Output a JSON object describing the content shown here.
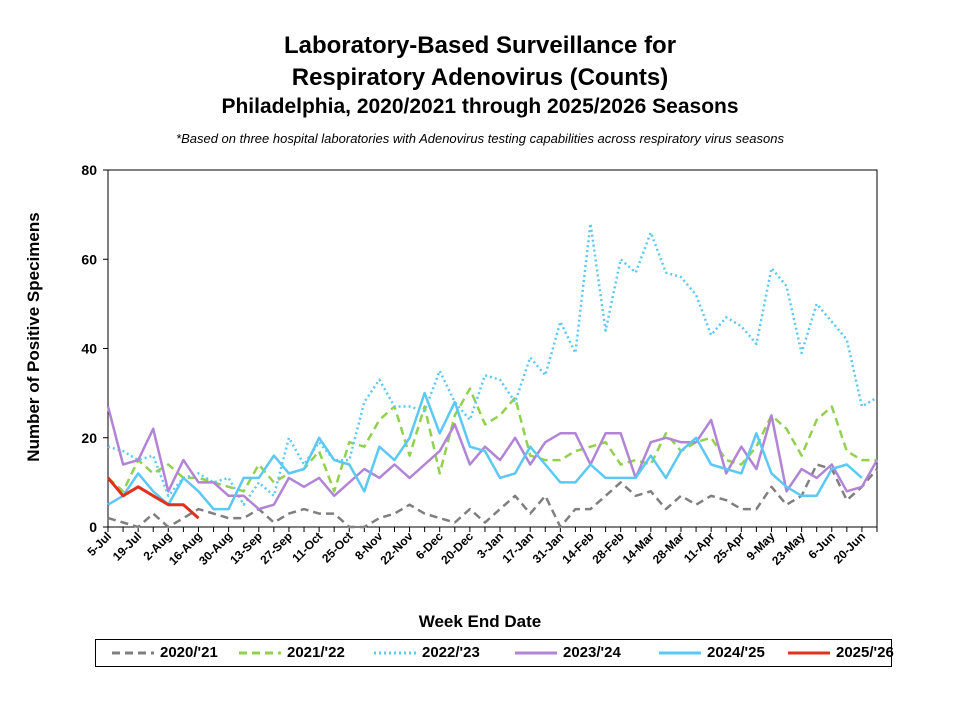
{
  "title_line1": "Laboratory-Based Surveillance for",
  "title_line2": "Respiratory Adenovirus (Counts)",
  "title_line3": "Philadelphia, 2020/2021 through 2025/2026 Seasons",
  "footnote": "*Based on three hospital laboratories with Adenovirus testing capabilities across respiratory virus seasons",
  "chart_data": {
    "type": "line",
    "xlabel": "Week End Date",
    "ylabel": "Number of Positive Specimens",
    "ylim": [
      0,
      80
    ],
    "yticks": [
      0,
      20,
      40,
      60,
      80
    ],
    "x": [
      "5-Jul",
      "12-Jul",
      "19-Jul",
      "26-Jul",
      "2-Aug",
      "9-Aug",
      "16-Aug",
      "23-Aug",
      "30-Aug",
      "6-Sep",
      "13-Sep",
      "20-Sep",
      "27-Sep",
      "4-Oct",
      "11-Oct",
      "18-Oct",
      "25-Oct",
      "1-Nov",
      "8-Nov",
      "15-Nov",
      "22-Nov",
      "29-Nov",
      "6-Dec",
      "13-Dec",
      "20-Dec",
      "27-Dec",
      "3-Jan",
      "10-Jan",
      "17-Jan",
      "24-Jan",
      "31-Jan",
      "7-Feb",
      "14-Feb",
      "21-Feb",
      "28-Feb",
      "7-Mar",
      "14-Mar",
      "21-Mar",
      "28-Mar",
      "4-Apr",
      "11-Apr",
      "18-Apr",
      "25-Apr",
      "2-May",
      "9-May",
      "16-May",
      "23-May",
      "30-May",
      "6-Jun",
      "13-Jun",
      "20-Jun",
      "27-Jun"
    ],
    "xtick_labels": [
      "5-Jul",
      "19-Jul",
      "2-Aug",
      "16-Aug",
      "30-Aug",
      "13-Sep",
      "27-Sep",
      "11-Oct",
      "25-Oct",
      "8-Nov",
      "22-Nov",
      "6-Dec",
      "20-Dec",
      "3-Jan",
      "17-Jan",
      "31-Jan",
      "14-Feb",
      "28-Feb",
      "14-Mar",
      "28-Mar",
      "11-Apr",
      "25-Apr",
      "9-May",
      "23-May",
      "6-Jun",
      "20-Jun"
    ],
    "legend_position": "bottom",
    "grid": false,
    "series": [
      {
        "name": "2020/'21",
        "color": "#7f7f7f",
        "style": "dashed",
        "values": [
          2,
          1,
          0,
          3,
          0,
          2,
          4,
          3,
          2,
          2,
          4,
          1,
          3,
          4,
          3,
          3,
          0,
          0,
          2,
          3,
          5,
          3,
          2,
          1,
          4,
          1,
          4,
          7,
          3,
          7,
          0,
          4,
          4,
          7,
          10,
          7,
          8,
          4,
          7,
          5,
          7,
          6,
          4,
          4,
          9,
          5,
          7,
          14,
          13,
          6,
          9,
          13
        ]
      },
      {
        "name": "2021/'22",
        "color": "#92d050",
        "style": "dashed",
        "values": [
          11,
          8,
          15,
          12,
          14,
          11,
          11,
          10,
          9,
          8,
          14,
          10,
          12,
          13,
          17,
          8,
          19,
          18,
          24,
          27,
          16,
          27,
          12,
          25,
          31,
          23,
          25,
          29,
          16,
          15,
          15,
          17,
          18,
          19,
          14,
          15,
          14,
          21,
          17,
          19,
          20,
          15,
          14,
          18,
          25,
          22,
          16,
          24,
          27,
          17,
          15,
          15
        ]
      },
      {
        "name": "2022/'23",
        "color": "#5bc8f5",
        "style": "dotted",
        "values": [
          18,
          17,
          15,
          16,
          7,
          11,
          12,
          10,
          11,
          5,
          10,
          7,
          20,
          14,
          19,
          15,
          15,
          28,
          33,
          27,
          27,
          26,
          35,
          28,
          24,
          34,
          33,
          28,
          38,
          34,
          46,
          39,
          68,
          44,
          60,
          57,
          66,
          57,
          56,
          52,
          43,
          47,
          45,
          41,
          58,
          54,
          39,
          50,
          46,
          42,
          27,
          29
        ]
      },
      {
        "name": "2023/'24",
        "color": "#b284d6",
        "style": "solid",
        "values": [
          27,
          14,
          15,
          22,
          8,
          15,
          10,
          10,
          7,
          7,
          4,
          5,
          11,
          9,
          11,
          7,
          10,
          13,
          11,
          14,
          11,
          14,
          17,
          23,
          14,
          18,
          15,
          20,
          14,
          19,
          21,
          21,
          14,
          21,
          21,
          11,
          19,
          20,
          19,
          19,
          24,
          12,
          18,
          13,
          25,
          8,
          13,
          11,
          14,
          8,
          9,
          15
        ]
      },
      {
        "name": "2024/'25",
        "color": "#5bc8f5",
        "style": "solid",
        "values": [
          5,
          7,
          12,
          8,
          5,
          11,
          8,
          4,
          4,
          11,
          11,
          16,
          12,
          13,
          20,
          15,
          14,
          8,
          18,
          15,
          20,
          30,
          21,
          28,
          18,
          17,
          11,
          12,
          18,
          14,
          10,
          10,
          14,
          11,
          11,
          11,
          16,
          11,
          17,
          20,
          14,
          13,
          12,
          21,
          12,
          9,
          7,
          7,
          13,
          14,
          11,
          null
        ]
      },
      {
        "name": "2025/'26",
        "color": "#e0301e",
        "style": "solid",
        "values": [
          11,
          7,
          9,
          7,
          5,
          5,
          2,
          null,
          null,
          null,
          null,
          null,
          null,
          null,
          null,
          null,
          null,
          null,
          null,
          null,
          null,
          null,
          null,
          null,
          null,
          null,
          null,
          null,
          null,
          null,
          null,
          null,
          null,
          null,
          null,
          null,
          null,
          null,
          null,
          null,
          null,
          null,
          null,
          null,
          null,
          null,
          null,
          null,
          null,
          null,
          null,
          null
        ]
      }
    ]
  }
}
